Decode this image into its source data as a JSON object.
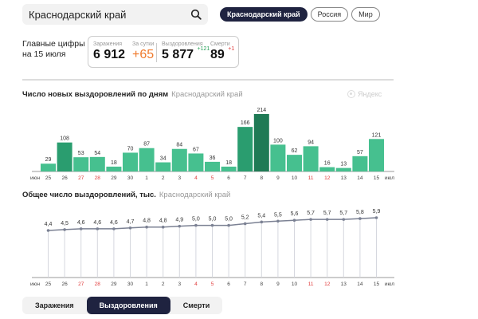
{
  "search": {
    "value": "Краснодарский край",
    "icon": "search-icon"
  },
  "region_pills": [
    {
      "label": "Краснодарский край",
      "active": true
    },
    {
      "label": "Россия",
      "active": false
    },
    {
      "label": "Мир",
      "active": false
    }
  ],
  "summary": {
    "label_line1": "Главные цифры",
    "label_line2": "на 15 июля",
    "infections": {
      "label": "Заражения",
      "value": "6 912"
    },
    "daily": {
      "label": "За сутки",
      "value": "+65"
    },
    "recoveries": {
      "label": "Выздоровления",
      "value": "5 877",
      "delta": "+121"
    },
    "deaths": {
      "label": "Смерти",
      "value": "89",
      "delta": "+1"
    }
  },
  "colors": {
    "bar_light": "#46c08f",
    "bar_mid": "#2a9d6f",
    "bar_dark": "#1f7a55",
    "line": "#7b8193",
    "weekend_red": "#e03a3a",
    "orange": "#f07a2c",
    "green_delta": "#2aa05a",
    "dark_navy": "#1f2340"
  },
  "brand": {
    "label": "Яндекс"
  },
  "chart_data": [
    {
      "type": "bar",
      "title": "Число новых выздоровлений по дням",
      "subtitle": "Краснодарский край",
      "xlabel_start": "июн",
      "xlabel_end": "июл",
      "categories": [
        "25",
        "26",
        "27",
        "28",
        "29",
        "30",
        "1",
        "2",
        "3",
        "4",
        "5",
        "6",
        "7",
        "8",
        "9",
        "10",
        "11",
        "12",
        "13",
        "14",
        "15"
      ],
      "weekend": [
        false,
        false,
        true,
        true,
        false,
        false,
        false,
        false,
        false,
        true,
        true,
        false,
        false,
        false,
        false,
        false,
        true,
        true,
        false,
        false,
        false
      ],
      "values": [
        29,
        108,
        53,
        54,
        18,
        70,
        87,
        34,
        84,
        67,
        36,
        18,
        166,
        214,
        100,
        62,
        94,
        16,
        13,
        57,
        121
      ],
      "shade": [
        "light",
        "mid",
        "light",
        "light",
        "light",
        "light",
        "light",
        "light",
        "light",
        "light",
        "light",
        "light",
        "mid",
        "dark",
        "light",
        "light",
        "light",
        "light",
        "light",
        "light",
        "light"
      ],
      "grid": false
    },
    {
      "type": "line",
      "title": "Общее число выздоровлений, тыс.",
      "subtitle": "Краснодарский край",
      "xlabel_start": "июн",
      "xlabel_end": "июл",
      "categories": [
        "25",
        "26",
        "27",
        "28",
        "29",
        "30",
        "1",
        "2",
        "3",
        "4",
        "5",
        "6",
        "7",
        "8",
        "9",
        "10",
        "11",
        "12",
        "13",
        "14",
        "15"
      ],
      "weekend": [
        false,
        false,
        true,
        true,
        false,
        false,
        false,
        false,
        false,
        true,
        true,
        false,
        false,
        false,
        false,
        false,
        true,
        true,
        false,
        false,
        false
      ],
      "values": [
        4.4,
        4.5,
        4.6,
        4.6,
        4.6,
        4.7,
        4.8,
        4.8,
        4.9,
        5.0,
        5.0,
        5.0,
        5.2,
        5.4,
        5.5,
        5.6,
        5.7,
        5.7,
        5.7,
        5.8,
        5.9
      ],
      "labels": [
        "4,4",
        "4,5",
        "4,6",
        "4,6",
        "4,6",
        "4,7",
        "4,8",
        "4,8",
        "4,9",
        "5,0",
        "5,0",
        "5,0",
        "5,2",
        "5,4",
        "5,5",
        "5,6",
        "5,7",
        "5,7",
        "5,7",
        "5,8",
        "5,9"
      ],
      "grid": "vertical drop lines"
    }
  ],
  "bottom_tabs": [
    {
      "label": "Заражения",
      "active": false
    },
    {
      "label": "Выздоровления",
      "active": true
    },
    {
      "label": "Смерти",
      "active": false
    }
  ]
}
